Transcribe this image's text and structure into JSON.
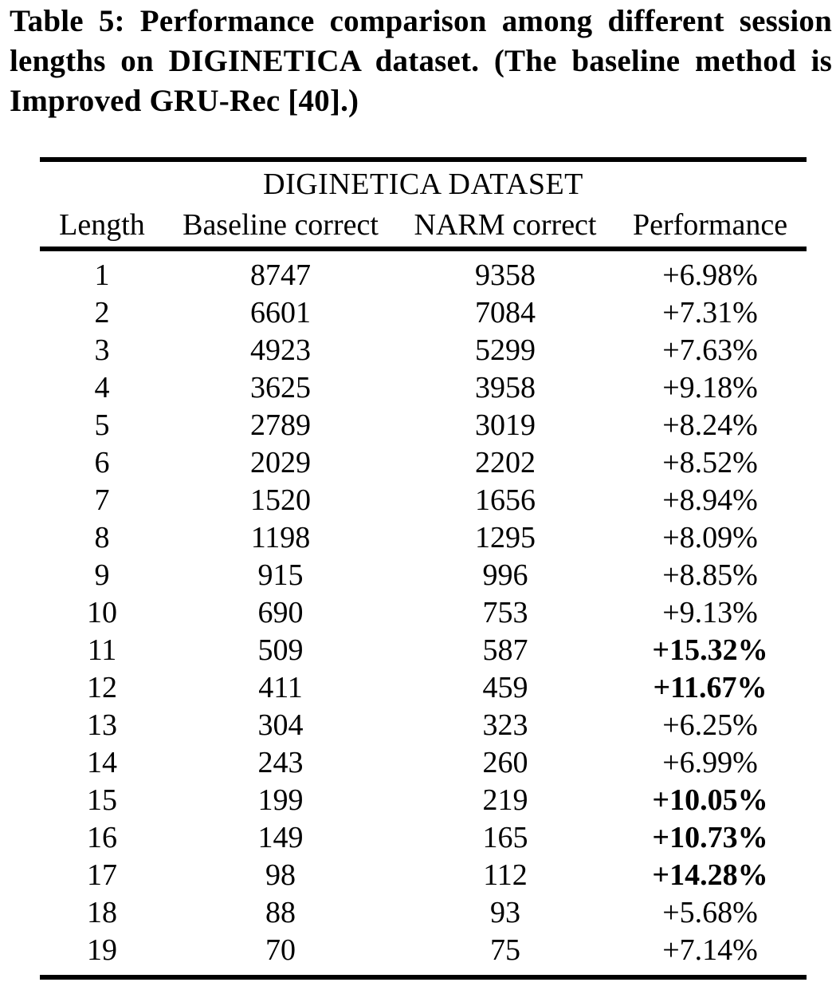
{
  "caption": {
    "lines": [
      "Table 5: Performance comparison among different session",
      "lengths on DIGINETICA dataset. (The baseline method is",
      "Improved GRU-Rec [40].)"
    ]
  },
  "table": {
    "title": "DIGINETICA DATASET",
    "columns": [
      "Length",
      "Baseline correct",
      "NARM correct",
      "Performance"
    ],
    "rows": [
      {
        "length": "1",
        "baseline": "8747",
        "narm": "9358",
        "performance": "+6.98%",
        "bold": false
      },
      {
        "length": "2",
        "baseline": "6601",
        "narm": "7084",
        "performance": "+7.31%",
        "bold": false
      },
      {
        "length": "3",
        "baseline": "4923",
        "narm": "5299",
        "performance": "+7.63%",
        "bold": false
      },
      {
        "length": "4",
        "baseline": "3625",
        "narm": "3958",
        "performance": "+9.18%",
        "bold": false
      },
      {
        "length": "5",
        "baseline": "2789",
        "narm": "3019",
        "performance": "+8.24%",
        "bold": false
      },
      {
        "length": "6",
        "baseline": "2029",
        "narm": "2202",
        "performance": "+8.52%",
        "bold": false
      },
      {
        "length": "7",
        "baseline": "1520",
        "narm": "1656",
        "performance": "+8.94%",
        "bold": false
      },
      {
        "length": "8",
        "baseline": "1198",
        "narm": "1295",
        "performance": "+8.09%",
        "bold": false
      },
      {
        "length": "9",
        "baseline": "915",
        "narm": "996",
        "performance": "+8.85%",
        "bold": false
      },
      {
        "length": "10",
        "baseline": "690",
        "narm": "753",
        "performance": "+9.13%",
        "bold": false
      },
      {
        "length": "11",
        "baseline": "509",
        "narm": "587",
        "performance": "+15.32%",
        "bold": true
      },
      {
        "length": "12",
        "baseline": "411",
        "narm": "459",
        "performance": "+11.67%",
        "bold": true
      },
      {
        "length": "13",
        "baseline": "304",
        "narm": "323",
        "performance": "+6.25%",
        "bold": false
      },
      {
        "length": "14",
        "baseline": "243",
        "narm": "260",
        "performance": "+6.99%",
        "bold": false
      },
      {
        "length": "15",
        "baseline": "199",
        "narm": "219",
        "performance": "+10.05%",
        "bold": true
      },
      {
        "length": "16",
        "baseline": "149",
        "narm": "165",
        "performance": "+10.73%",
        "bold": true
      },
      {
        "length": "17",
        "baseline": "98",
        "narm": "112",
        "performance": "+14.28%",
        "bold": true
      },
      {
        "length": "18",
        "baseline": "88",
        "narm": "93",
        "performance": "+5.68%",
        "bold": false
      },
      {
        "length": "19",
        "baseline": "70",
        "narm": "75",
        "performance": "+7.14%",
        "bold": false
      }
    ]
  },
  "colors": {
    "text": "#000000",
    "background": "#ffffff",
    "rule": "#000000"
  }
}
